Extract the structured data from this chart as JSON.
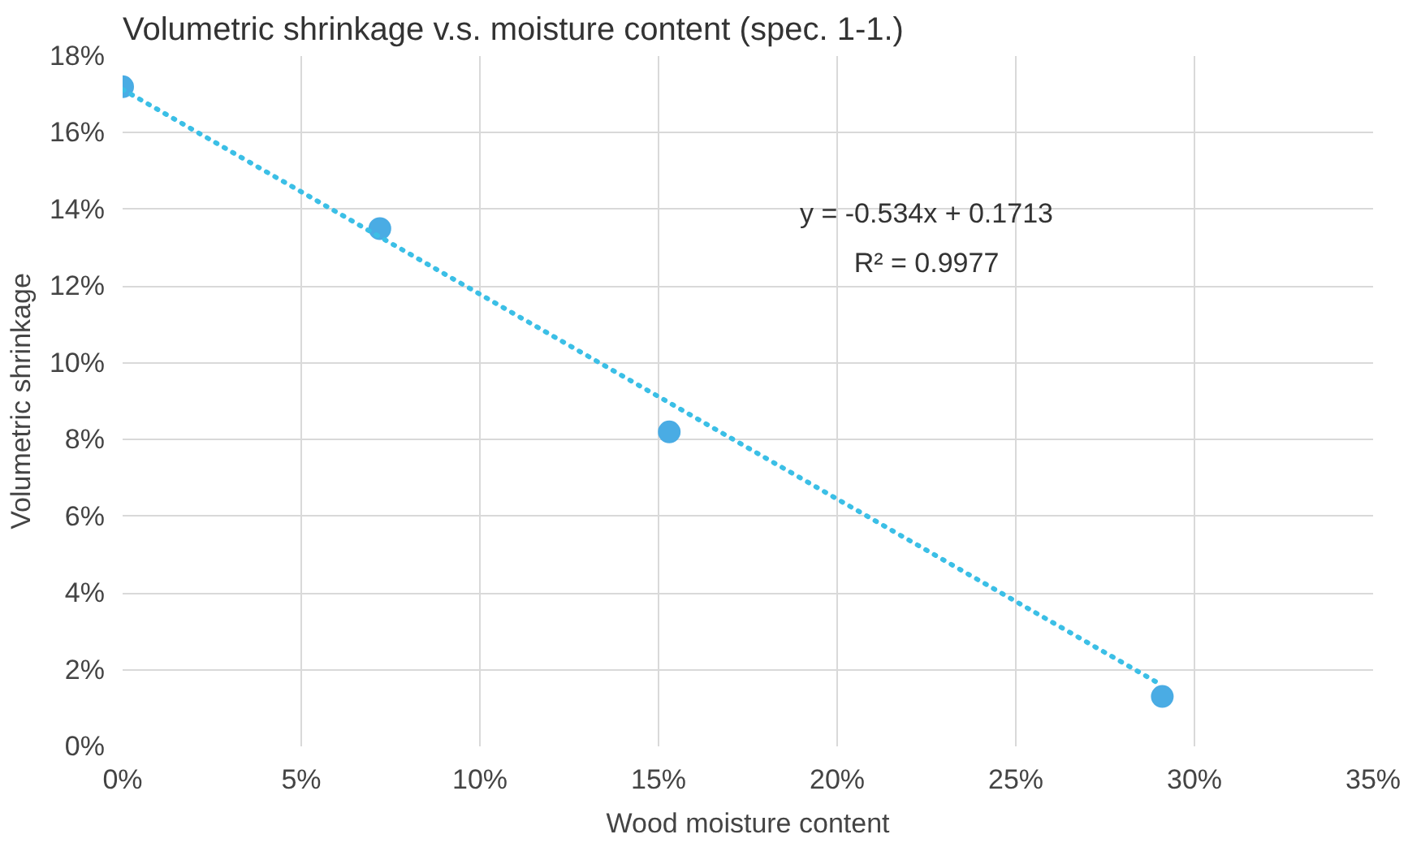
{
  "chart_data": {
    "type": "scatter",
    "title": "Volumetric shrinkage v.s. moisture content (spec. 1-1.)",
    "xlabel": "Wood moisture content",
    "ylabel": "Volumetric shrinkage",
    "series": [
      {
        "color": "#4aace4",
        "x": [
          0,
          0.072,
          0.153,
          0.291
        ],
        "values": [
          0.172,
          0.135,
          0.082,
          0.013
        ],
        "marker": "circle"
      },
      {
        "type": "line",
        "color": "#3bbfe6",
        "x": [
          0,
          0.291
        ],
        "values": [
          0.1713,
          0.0159
        ],
        "line_style": "dotted",
        "marker": "none"
      }
    ],
    "annotations": [
      "y = -0.534x + 0.1713",
      "R² = 0.9977"
    ],
    "xlim": [
      0,
      0.35
    ],
    "xticks": [
      {
        "value": 0,
        "label": "0%"
      },
      {
        "value": 0.05,
        "label": "5%"
      },
      {
        "value": 0.1,
        "label": "10%"
      },
      {
        "value": 0.15,
        "label": "15%"
      },
      {
        "value": 0.2,
        "label": "20%"
      },
      {
        "value": 0.25,
        "label": "25%"
      },
      {
        "value": 0.3,
        "label": "30%"
      },
      {
        "value": 0.35,
        "label": "35%"
      }
    ],
    "ylim": [
      0,
      0.18
    ],
    "yticks": [
      {
        "value": 0,
        "label": "0%"
      },
      {
        "value": 0.02,
        "label": "2%"
      },
      {
        "value": 0.04,
        "label": "4%"
      },
      {
        "value": 0.06,
        "label": "6%"
      },
      {
        "value": 0.08,
        "label": "8%"
      },
      {
        "value": 0.1,
        "label": "10%"
      },
      {
        "value": 0.12,
        "label": "12%"
      },
      {
        "value": 0.14,
        "label": "14%"
      },
      {
        "value": 0.16,
        "label": "16%"
      },
      {
        "value": 0.18,
        "label": "18%"
      }
    ],
    "grid": true
  }
}
